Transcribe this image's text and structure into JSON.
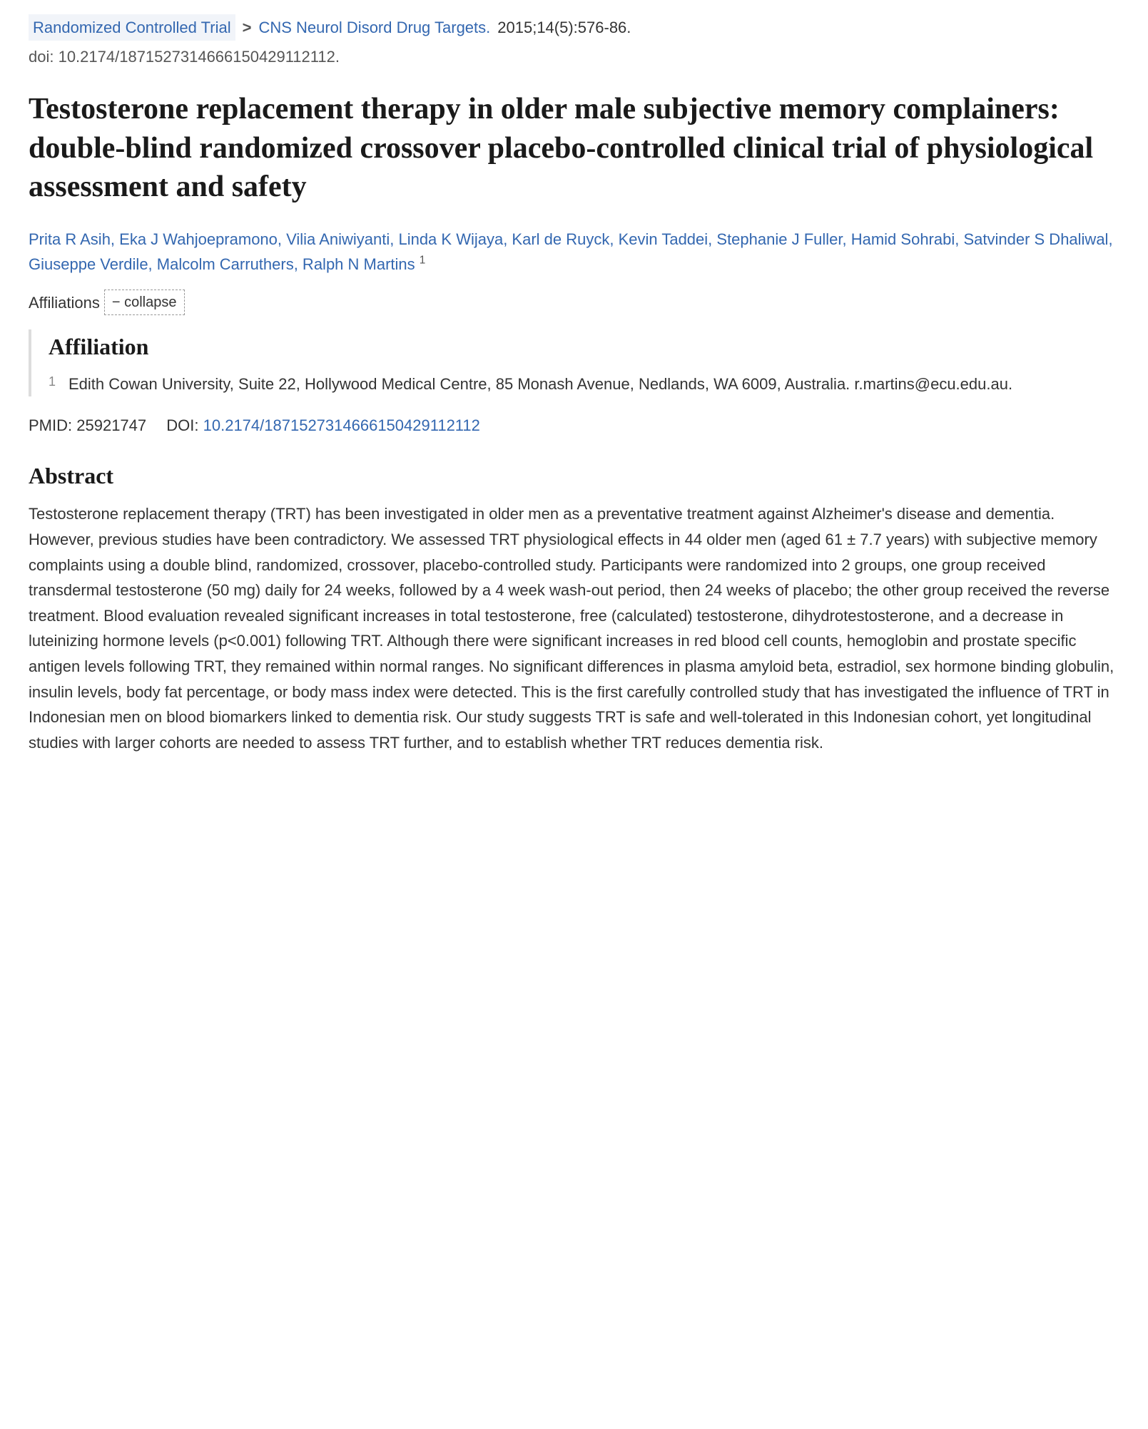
{
  "header": {
    "publication_type": "Randomized Controlled Trial",
    "chevron": ">",
    "journal_abbrev": "CNS Neurol Disord Drug Targets.",
    "citation_tail": "2015;14(5):576-86.",
    "doi_line": "doi: 10.2174/1871527314666150429112112."
  },
  "title": "Testosterone replacement therapy in older male subjective memory complainers: double-blind randomized crossover placebo-controlled clinical trial of physiological assessment and safety",
  "authors_html": "Prita R Asih, Eka J Wahjoepramono, Vilia Aniwiyanti, Linda K Wijaya, Karl de Ruyck, Kevin Taddei, Stephanie J Fuller, Hamid Sohrabi, Satvinder S Dhaliwal, Giuseppe Verdile, Malcolm Carruthers, Ralph N Martins",
  "author_sup": "1",
  "affiliations_label": "Affiliations",
  "collapse_label": "−  collapse",
  "affiliation_heading": "Affiliation",
  "affiliations": [
    {
      "num": "1",
      "text": "Edith Cowan University, Suite 22, Hollywood Medical Centre, 85 Monash Avenue, Nedlands, WA 6009, Australia. r.martins@ecu.edu.au."
    }
  ],
  "ids": {
    "pmid_label": "PMID:",
    "pmid": "25921747",
    "doi_label": "DOI:",
    "doi": "10.2174/1871527314666150429112112"
  },
  "abstract_heading": "Abstract",
  "abstract": "Testosterone replacement therapy (TRT) has been investigated in older men as a preventative treatment against Alzheimer's disease and dementia. However, previous studies have been contradictory. We assessed TRT physiological effects in 44 older men (aged 61 ± 7.7 years) with subjective memory complaints using a double blind, randomized, crossover, placebo-controlled study. Participants were randomized into 2 groups, one group received transdermal testosterone (50 mg) daily for 24 weeks, followed by a 4 week wash-out period, then 24 weeks of placebo; the other group received the reverse treatment. Blood evaluation revealed significant increases in total testosterone, free (calculated) testosterone, dihydrotestosterone, and a decrease in luteinizing hormone levels (p<0.001) following TRT. Although there were significant increases in red blood cell counts, hemoglobin and prostate specific antigen levels following TRT, they remained within normal ranges. No significant differences in plasma amyloid beta, estradiol, sex hormone binding globulin, insulin levels, body fat percentage, or body mass index were detected. This is the first carefully controlled study that has investigated the influence of TRT in Indonesian men on blood biomarkers linked to dementia risk. Our study suggests TRT is safe and well-tolerated in this Indonesian cohort, yet longitudinal studies with larger cohorts are needed to assess TRT further, and to establish whether TRT reduces dementia risk.",
  "colors": {
    "link": "#3367b0",
    "text": "#212121",
    "muted": "#555555",
    "border": "#dddddd"
  }
}
